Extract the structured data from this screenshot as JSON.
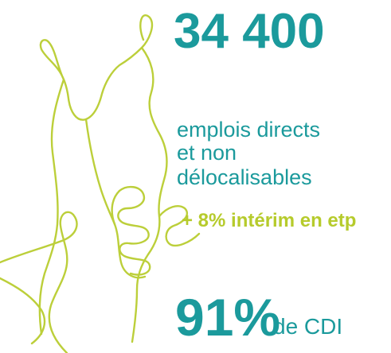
{
  "headline": "34 400",
  "description": [
    "emplois directs",
    "et non",
    "délocalisables"
  ],
  "extra": "+ 8% intérim en etp",
  "stat": {
    "value": "91%",
    "label": "de CDI"
  }
}
